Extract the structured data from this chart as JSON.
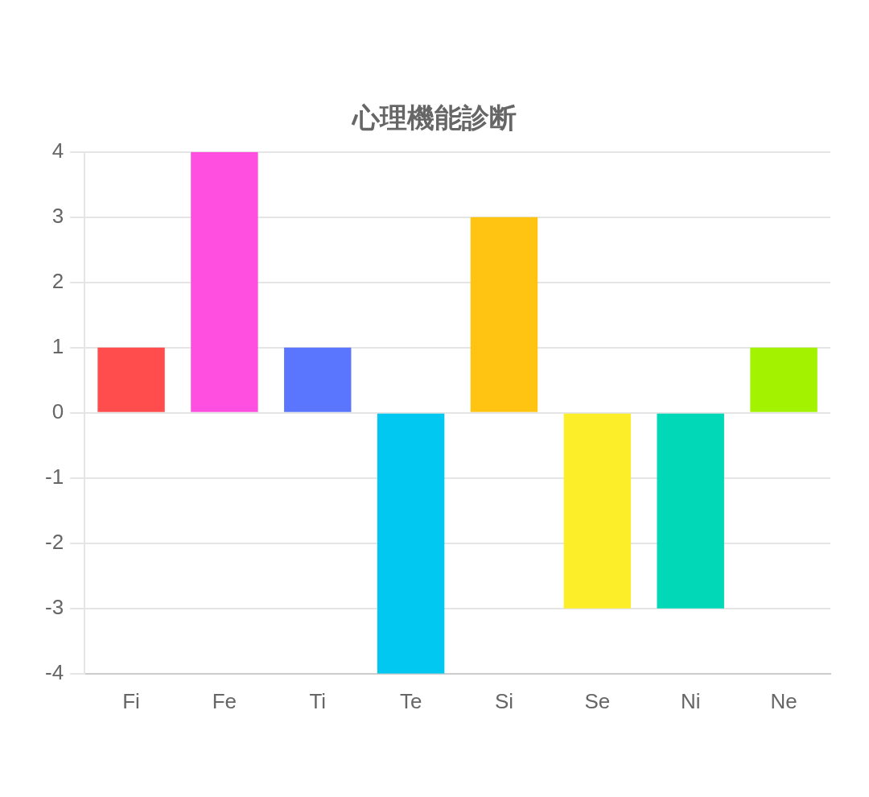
{
  "chart_data": {
    "type": "bar",
    "title": "心理機能診断",
    "categories": [
      "Fi",
      "Fe",
      "Ti",
      "Te",
      "Si",
      "Se",
      "Ni",
      "Ne"
    ],
    "values": [
      1,
      4,
      1,
      -4,
      3,
      -3,
      -3,
      1
    ],
    "colors": [
      "#ff4d4d",
      "#ff4fe0",
      "#5a76ff",
      "#00c8f0",
      "#ffc312",
      "#fdee2a",
      "#00d8b8",
      "#a3f200"
    ],
    "ylim": [
      -4,
      4
    ],
    "yticks": [
      -4,
      -3,
      -2,
      -1,
      0,
      1,
      2,
      3,
      4
    ],
    "grid": "y",
    "legend": false
  }
}
